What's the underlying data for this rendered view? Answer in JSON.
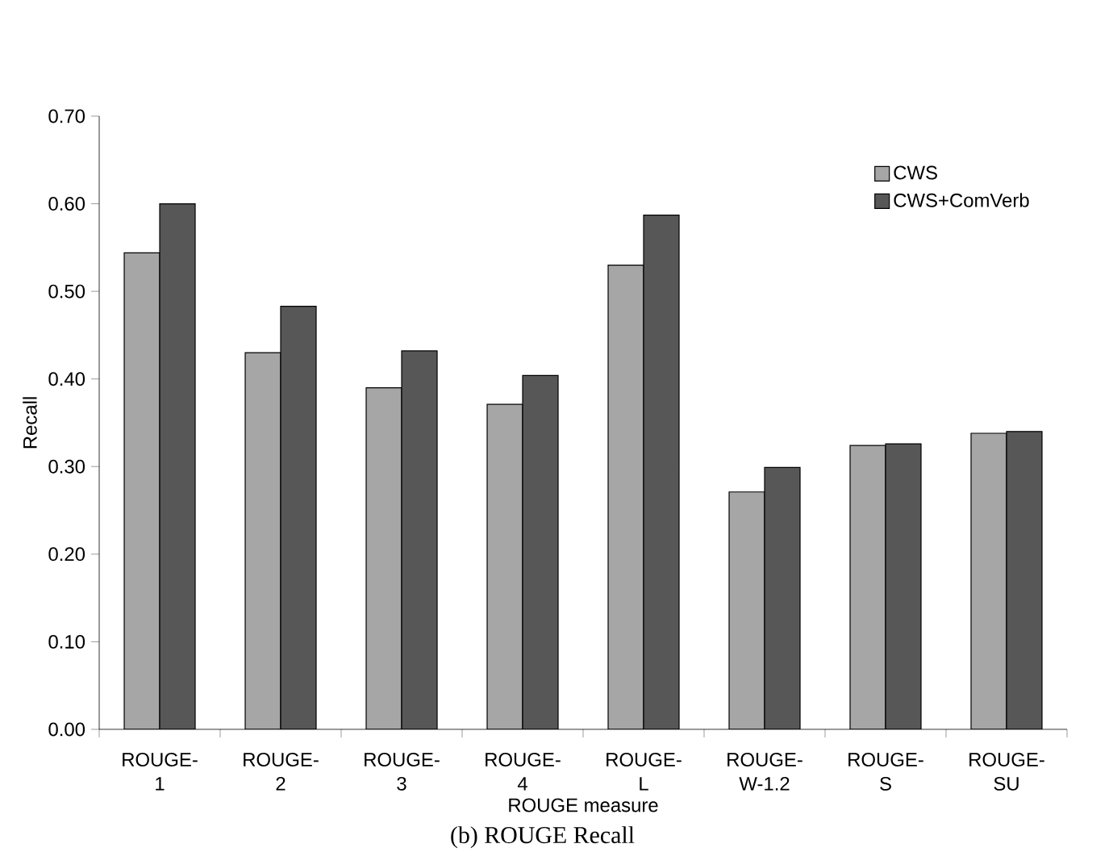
{
  "chart_data": {
    "type": "bar",
    "xlabel": "ROUGE measure",
    "ylabel": "Recall",
    "annotations": [
      "(b) ROUGE Recall"
    ],
    "categories": [
      "ROUGE-1",
      "ROUGE-2",
      "ROUGE-3",
      "ROUGE-4",
      "ROUGE-L",
      "ROUGE-W-1.2",
      "ROUGE-S",
      "ROUGE-SU"
    ],
    "series": [
      {
        "name": "CWS",
        "color": "#a6a6a6",
        "values": [
          0.544,
          0.43,
          0.39,
          0.371,
          0.53,
          0.271,
          0.324,
          0.338
        ]
      },
      {
        "name": "CWS+ComVerb",
        "color": "#575757",
        "values": [
          0.6,
          0.483,
          0.432,
          0.404,
          0.587,
          0.299,
          0.326,
          0.34
        ]
      }
    ],
    "ylim": [
      0,
      0.7
    ],
    "yticks": [
      {
        "value": 0,
        "label": "0.00"
      },
      {
        "value": 0.1,
        "label": "0.10"
      },
      {
        "value": 0.2,
        "label": "0.20"
      },
      {
        "value": 0.3,
        "label": "0.30"
      },
      {
        "value": 0.4,
        "label": "0.40"
      },
      {
        "value": 0.5,
        "label": "0.50"
      },
      {
        "value": 0.6,
        "label": "0.60"
      },
      {
        "value": 0.7,
        "label": "0.70"
      }
    ],
    "grid": false,
    "legend": "top right"
  }
}
